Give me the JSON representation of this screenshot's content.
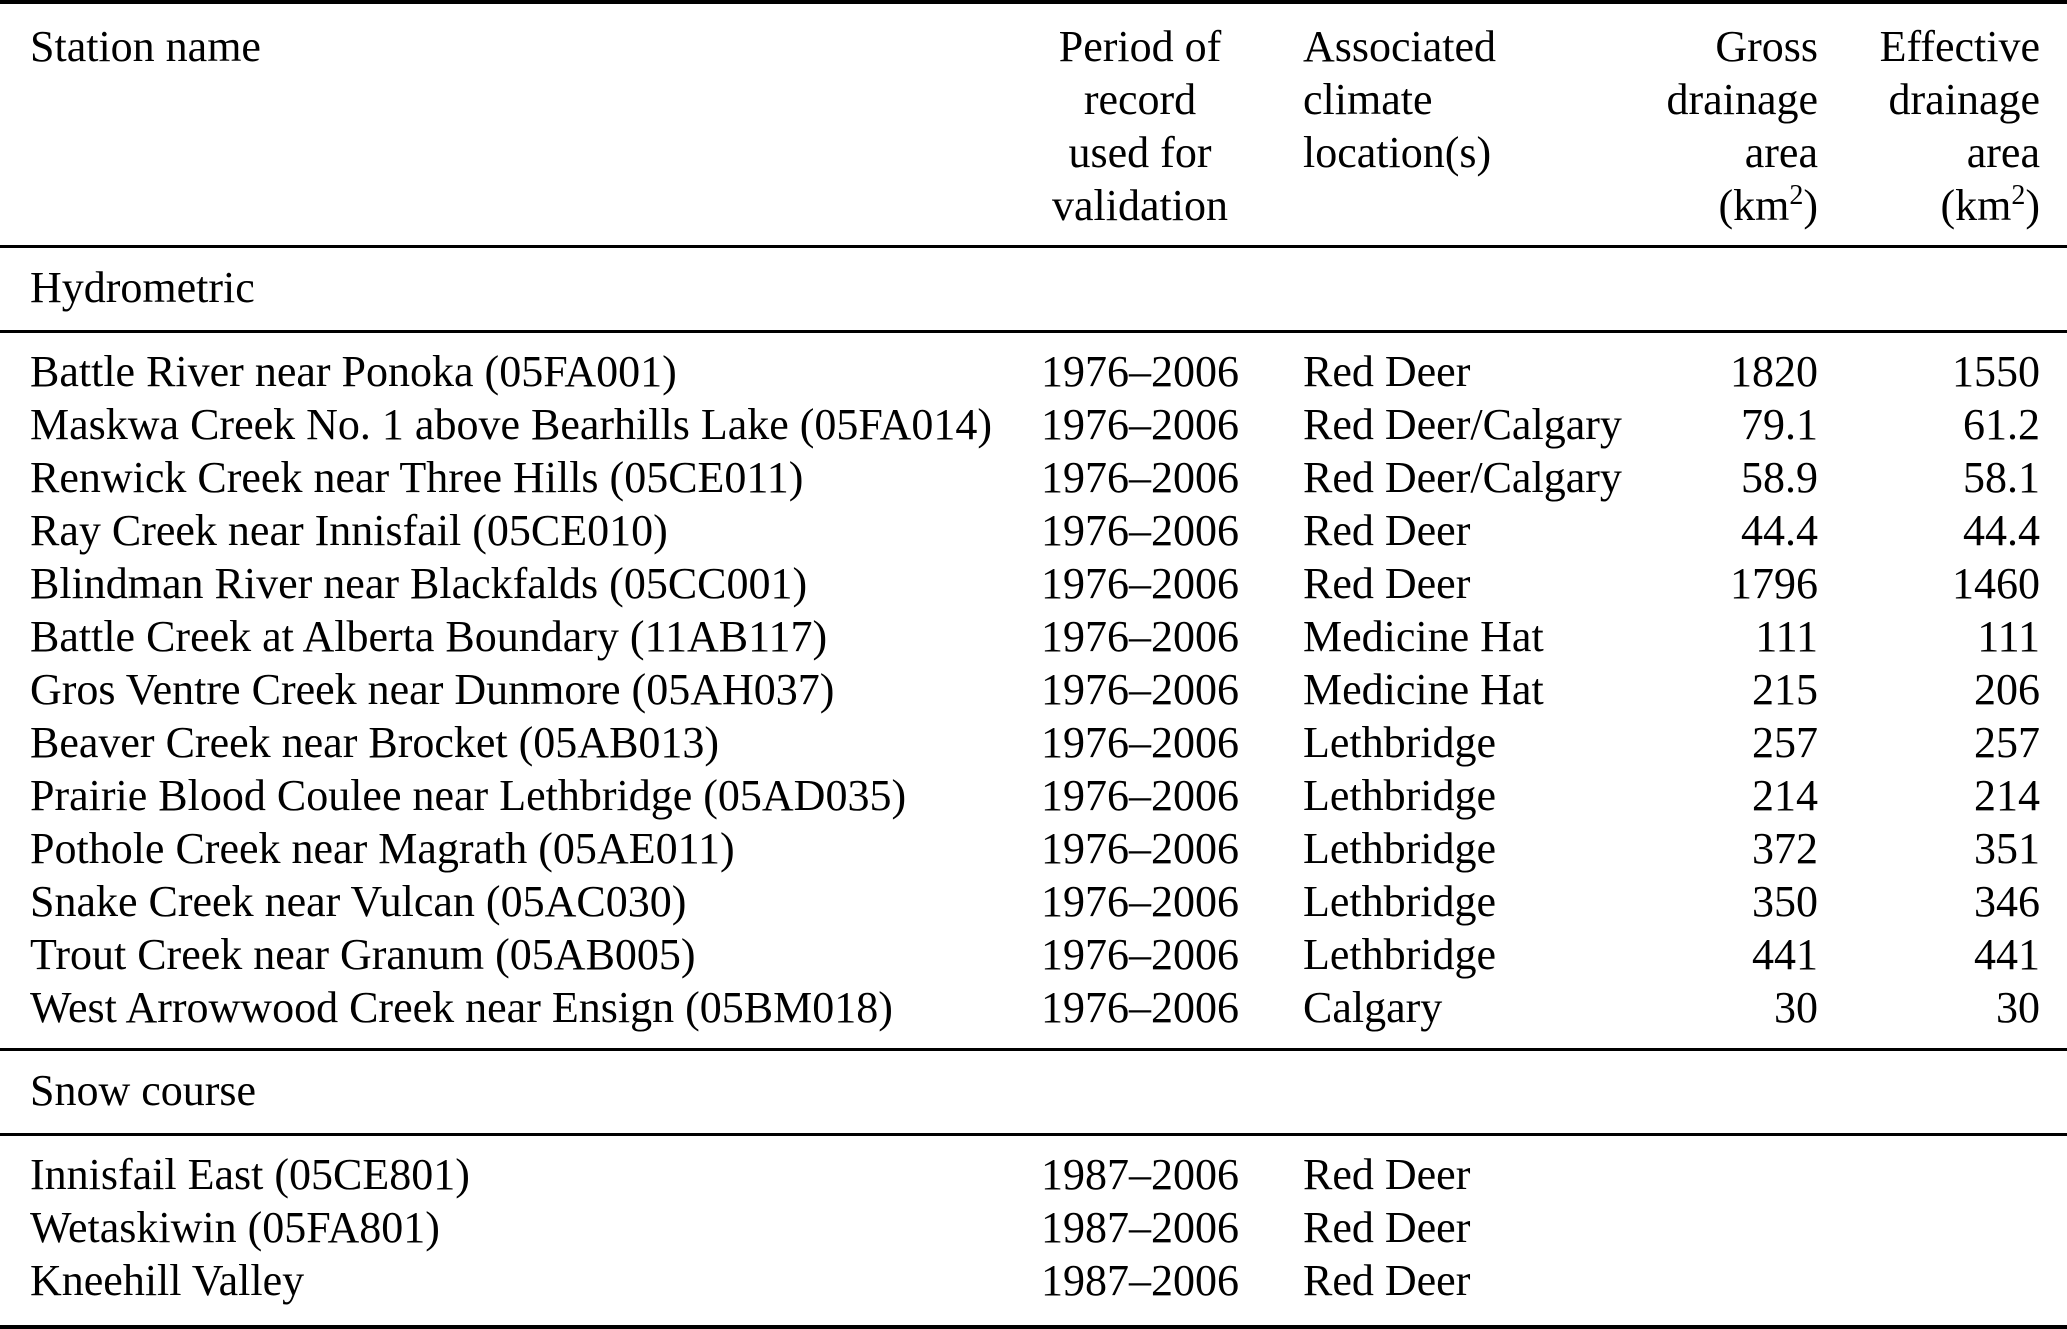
{
  "header": {
    "station": "Station name",
    "period": {
      "lines": [
        "Period of",
        "record",
        "used for",
        "validation"
      ]
    },
    "climate": {
      "lines": [
        "Associated",
        "climate",
        "location(s)"
      ]
    },
    "gross": {
      "lines": [
        "Gross",
        "drainage",
        "area"
      ],
      "unit": {
        "pre": "(km",
        "sup": "2",
        "post": ")"
      }
    },
    "effective": {
      "lines": [
        "Effective",
        "drainage",
        "area"
      ],
      "unit": {
        "pre": "(km",
        "sup": "2",
        "post": ")"
      }
    }
  },
  "sections": {
    "hydrometric": {
      "title": "Hydrometric",
      "rows": [
        {
          "station": "Battle River near Ponoka (05FA001)",
          "period": "1976–2006",
          "climate": "Red Deer",
          "gross": "1820",
          "effective": "1550"
        },
        {
          "station": "Maskwa Creek No. 1 above Bearhills Lake (05FA014)",
          "period": "1976–2006",
          "climate": "Red Deer/Calgary",
          "gross": "79.1",
          "effective": "61.2"
        },
        {
          "station": "Renwick Creek near Three Hills (05CE011)",
          "period": "1976–2006",
          "climate": "Red Deer/Calgary",
          "gross": "58.9",
          "effective": "58.1"
        },
        {
          "station": "Ray Creek near Innisfail (05CE010)",
          "period": "1976–2006",
          "climate": "Red Deer",
          "gross": "44.4",
          "effective": "44.4"
        },
        {
          "station": "Blindman River near Blackfalds (05CC001)",
          "period": "1976–2006",
          "climate": "Red Deer",
          "gross": "1796",
          "effective": "1460"
        },
        {
          "station": "Battle Creek at Alberta Boundary (11AB117)",
          "period": "1976–2006",
          "climate": "Medicine Hat",
          "gross": "111",
          "effective": "111"
        },
        {
          "station": "Gros Ventre Creek near Dunmore (05AH037)",
          "period": "1976–2006",
          "climate": "Medicine Hat",
          "gross": "215",
          "effective": "206"
        },
        {
          "station": "Beaver Creek near Brocket (05AB013)",
          "period": "1976–2006",
          "climate": "Lethbridge",
          "gross": "257",
          "effective": "257"
        },
        {
          "station": "Prairie Blood Coulee near Lethbridge (05AD035)",
          "period": "1976–2006",
          "climate": "Lethbridge",
          "gross": "214",
          "effective": "214"
        },
        {
          "station": "Pothole Creek near Magrath (05AE011)",
          "period": "1976–2006",
          "climate": "Lethbridge",
          "gross": "372",
          "effective": "351"
        },
        {
          "station": "Snake Creek near Vulcan (05AC030)",
          "period": "1976–2006",
          "climate": "Lethbridge",
          "gross": "350",
          "effective": "346"
        },
        {
          "station": "Trout Creek near Granum (05AB005)",
          "period": "1976–2006",
          "climate": "Lethbridge",
          "gross": "441",
          "effective": "441"
        },
        {
          "station": "West Arrowwood Creek near Ensign (05BM018)",
          "period": "1976–2006",
          "climate": "Calgary",
          "gross": "30",
          "effective": "30"
        }
      ]
    },
    "snow_course": {
      "title": "Snow course",
      "rows": [
        {
          "station": "Innisfail East (05CE801)",
          "period": "1987–2006",
          "climate": "Red Deer",
          "gross": "",
          "effective": ""
        },
        {
          "station": "Wetaskiwin (05FA801)",
          "period": "1987–2006",
          "climate": "Red Deer",
          "gross": "",
          "effective": ""
        },
        {
          "station": "Kneehill Valley",
          "period": "1987–2006",
          "climate": "Red Deer",
          "gross": "",
          "effective": ""
        }
      ]
    }
  },
  "colors": {
    "text": "#000000",
    "background": "#ffffff",
    "rule": "#000000"
  }
}
